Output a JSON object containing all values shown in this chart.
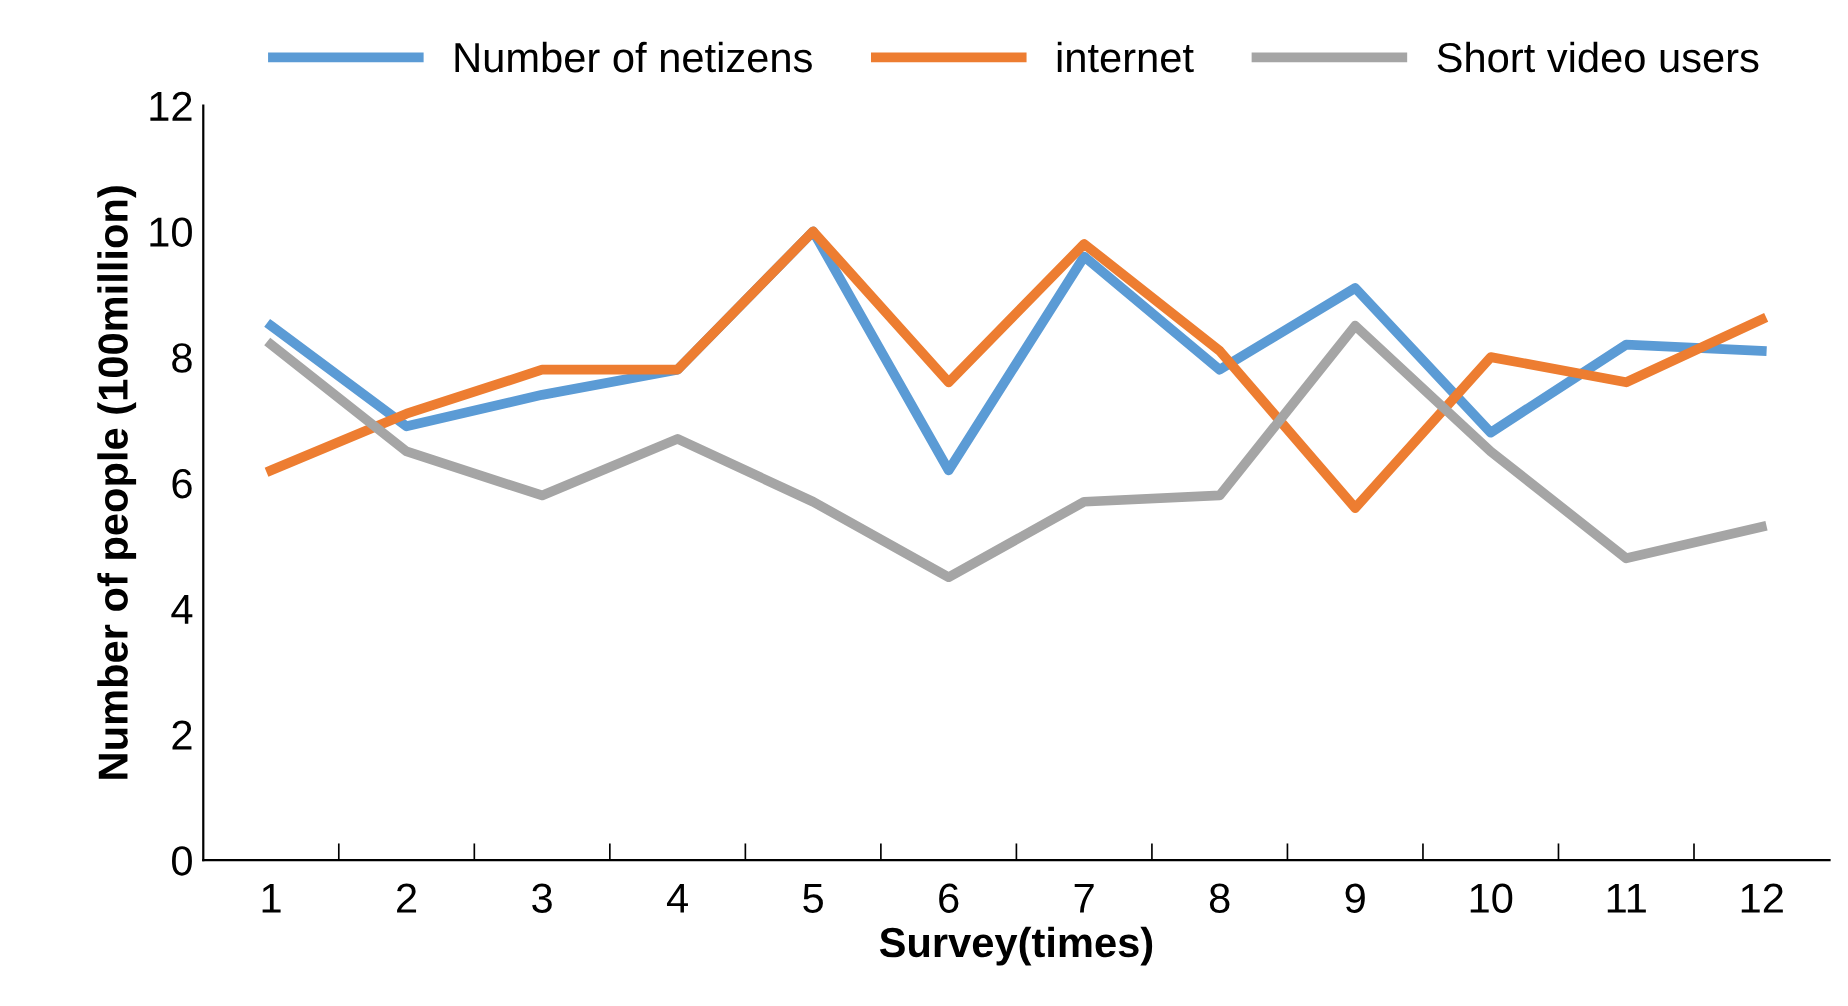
{
  "chart_data": {
    "type": "line",
    "xlabel": "Survey(times)",
    "ylabel": "Number of people (100million)",
    "categories": [
      "1",
      "2",
      "3",
      "4",
      "5",
      "6",
      "7",
      "8",
      "9",
      "10",
      "11",
      "12"
    ],
    "series": [
      {
        "name": "Number of netizens",
        "color": "#5b9bd5",
        "values": [
          8.5,
          6.9,
          7.4,
          7.8,
          10.0,
          6.2,
          9.6,
          7.8,
          9.1,
          6.8,
          8.2,
          8.1
        ]
      },
      {
        "name": "internet",
        "color": "#ed7d31",
        "values": [
          6.2,
          7.1,
          7.8,
          7.8,
          10.0,
          7.6,
          9.8,
          8.1,
          5.6,
          8.0,
          7.6,
          8.6
        ]
      },
      {
        "name": "Short video users",
        "color": "#a5a5a5",
        "values": [
          8.2,
          6.5,
          5.8,
          6.7,
          5.7,
          4.5,
          5.7,
          5.8,
          8.5,
          6.5,
          4.8,
          5.3
        ]
      }
    ],
    "ylim": [
      0,
      12
    ],
    "yticks": [
      0,
      2,
      4,
      6,
      8,
      10,
      12
    ],
    "grid": false,
    "legend": "top",
    "marker": "none",
    "line_style": "solid"
  }
}
